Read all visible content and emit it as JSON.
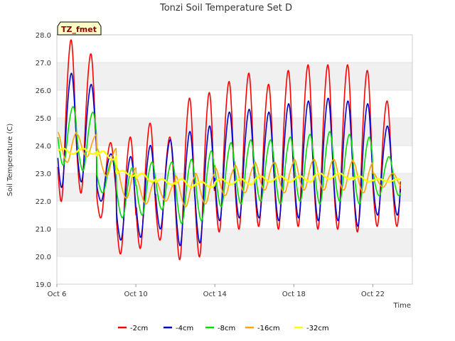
{
  "chart_data": {
    "type": "line",
    "title": "Tonzi Soil Temperature Set D",
    "xlabel": "Time",
    "ylabel": "Soil Temperature (C)",
    "badge": "TZ_fmet",
    "ylim": [
      19.0,
      28.0
    ],
    "xlim": [
      0,
      18
    ],
    "x_unit": "days since Oct 6",
    "yticks": [
      "19.0",
      "20.0",
      "21.0",
      "22.0",
      "23.0",
      "24.0",
      "25.0",
      "26.0",
      "27.0",
      "28.0"
    ],
    "xticks": [
      {
        "value": 0,
        "label": "Oct 6"
      },
      {
        "value": 4,
        "label": "Oct 10"
      },
      {
        "value": 8,
        "label": "Oct 14"
      },
      {
        "value": 12,
        "label": "Oct 18"
      },
      {
        "value": 16,
        "label": "Oct 22"
      }
    ],
    "grid": "horizontal alternating bands",
    "legend_position": "bottom",
    "series": [
      {
        "name": "-2cm",
        "color": "#ff0000",
        "phase": 0.7,
        "width": 1.6,
        "peaks": [
          27.8,
          27.3,
          24.1,
          24.3,
          24.8,
          24.3,
          25.7,
          25.9,
          26.3,
          26.6,
          26.2,
          26.7,
          26.9,
          26.9,
          26.9,
          26.7,
          25.6
        ],
        "troughs": [
          22.0,
          22.3,
          21.4,
          20.1,
          20.3,
          20.6,
          19.9,
          20.0,
          20.9,
          21.0,
          21.1,
          21.0,
          21.1,
          21.0,
          21.0,
          20.9,
          21.1
        ]
      },
      {
        "name": "-4cm",
        "color": "#0000cc",
        "phase": 0.72,
        "width": 1.6,
        "peaks": [
          26.6,
          26.2,
          23.7,
          23.6,
          24.0,
          24.2,
          24.5,
          24.7,
          25.2,
          25.3,
          25.2,
          25.5,
          25.6,
          25.7,
          25.6,
          25.5,
          24.7
        ],
        "troughs": [
          22.5,
          22.7,
          22.0,
          20.6,
          20.7,
          21.0,
          20.4,
          20.5,
          21.3,
          21.4,
          21.4,
          21.3,
          21.4,
          21.3,
          21.3,
          21.1,
          21.5
        ]
      },
      {
        "name": "-8cm",
        "color": "#00dd00",
        "phase": 0.8,
        "width": 1.6,
        "peaks": [
          25.4,
          25.2,
          23.5,
          23.2,
          23.4,
          23.4,
          23.5,
          23.8,
          24.1,
          24.2,
          24.2,
          24.3,
          24.4,
          24.5,
          24.4,
          24.3,
          23.6
        ],
        "troughs": [
          23.3,
          23.1,
          22.3,
          21.4,
          21.5,
          21.7,
          21.2,
          21.3,
          21.8,
          21.9,
          22.0,
          21.9,
          22.0,
          21.9,
          22.0,
          21.9,
          22.2
        ]
      },
      {
        "name": "-16cm",
        "color": "#ffa500",
        "phase": 1.0,
        "width": 1.6,
        "peaks": [
          24.5,
          24.4,
          23.9,
          23.2,
          22.8,
          22.7,
          22.9,
          23.0,
          23.2,
          23.3,
          23.4,
          23.4,
          23.5,
          23.5,
          23.5,
          23.4,
          23.0
        ],
        "troughs": [
          23.4,
          23.6,
          22.9,
          22.1,
          21.9,
          22.0,
          21.8,
          21.9,
          22.2,
          22.3,
          22.4,
          22.3,
          22.4,
          22.4,
          22.4,
          22.3,
          22.5
        ]
      },
      {
        "name": "-32cm",
        "color": "#ffff00",
        "phase": 1.3,
        "width": 2.4,
        "peaks": [
          23.9,
          23.9,
          23.8,
          23.1,
          23.0,
          22.8,
          22.8,
          22.7,
          22.8,
          22.8,
          22.9,
          22.9,
          22.9,
          23.0,
          23.0,
          22.9,
          22.8
        ],
        "troughs": [
          23.7,
          23.7,
          23.5,
          22.9,
          22.7,
          22.6,
          22.5,
          22.5,
          22.6,
          22.6,
          22.7,
          22.7,
          22.7,
          22.8,
          22.8,
          22.7,
          22.7
        ]
      }
    ]
  }
}
